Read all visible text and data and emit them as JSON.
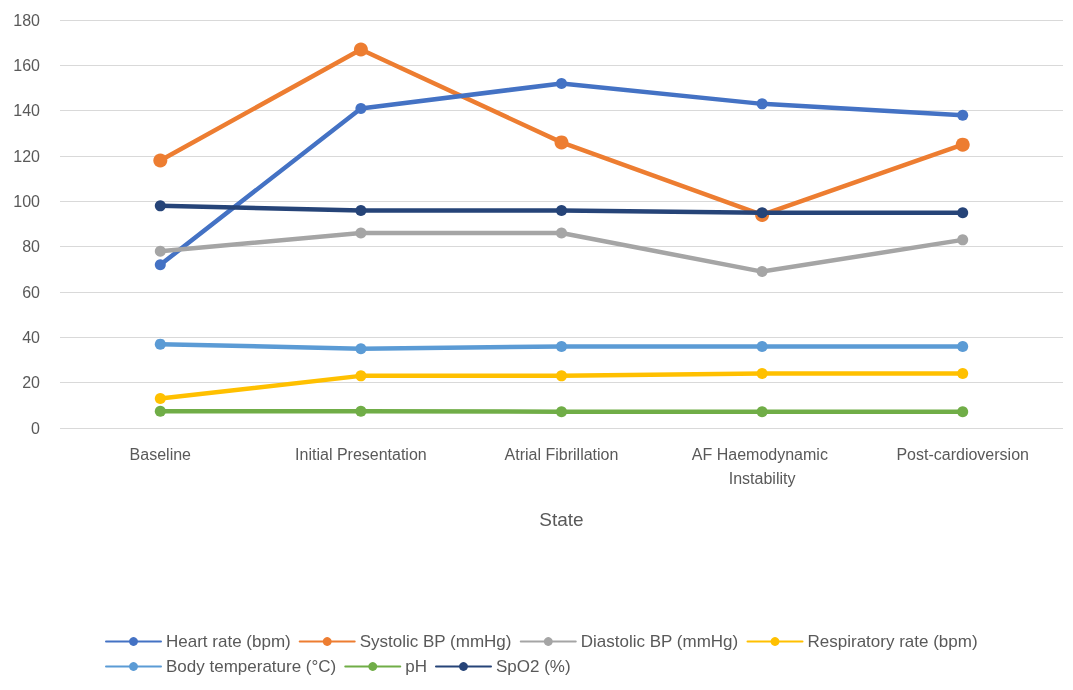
{
  "chart_data": {
    "type": "line",
    "xlabel": "State",
    "categories": [
      "Baseline",
      "Initial Presentation",
      "Atrial Fibrillation",
      "AF Haemodynamic Instability",
      "Post-cardioversion"
    ],
    "series": [
      {
        "name": "Heart rate (bpm)",
        "color": "#4472c4",
        "values": [
          72,
          141,
          152,
          143,
          138
        ]
      },
      {
        "name": "Systolic BP (mmHg)",
        "color": "#ed7d31",
        "values": [
          118,
          167,
          126,
          94,
          125
        ]
      },
      {
        "name": "Diastolic BP (mmHg)",
        "color": "#a5a5a5",
        "values": [
          78,
          86,
          86,
          69,
          83
        ]
      },
      {
        "name": "Respiratory rate (bpm)",
        "color": "#ffc000",
        "values": [
          13,
          23,
          23,
          24,
          24
        ]
      },
      {
        "name": "Body temperature (°C)",
        "color": "#5b9bd5",
        "values": [
          37,
          35,
          36,
          36,
          36
        ]
      },
      {
        "name": "pH",
        "color": "#70ad47",
        "values": [
          7.4,
          7.4,
          7.2,
          7.2,
          7.2
        ]
      },
      {
        "name": "SpO2 (%)",
        "color": "#264478",
        "values": [
          98,
          96,
          96,
          95,
          95
        ]
      }
    ],
    "ylim": [
      0,
      180
    ],
    "yticks": [
      0,
      20,
      40,
      60,
      80,
      100,
      120,
      140,
      160,
      180
    ],
    "grid": "y",
    "legend": "bottom",
    "marker": "circle",
    "line_style": "solid"
  }
}
